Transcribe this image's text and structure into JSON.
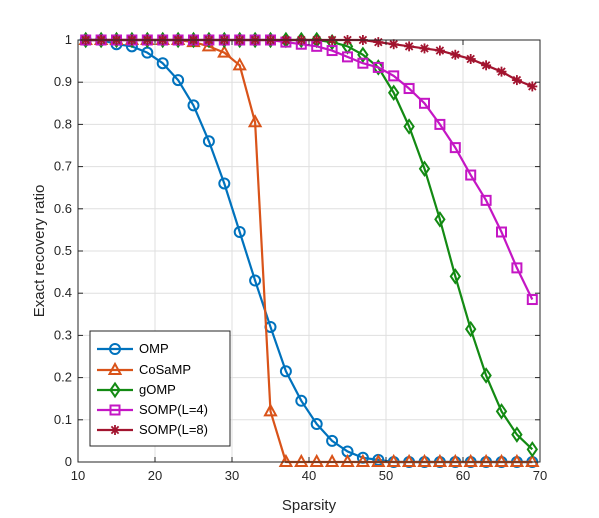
{
  "chart_data": {
    "type": "line",
    "xlabel": "Sparsity",
    "ylabel": "Exact recovery ratio",
    "xlim": [
      10,
      70
    ],
    "ylim": [
      0,
      1
    ],
    "xticks": [
      "10",
      "20",
      "30",
      "40",
      "50",
      "60",
      "70"
    ],
    "yticks": [
      "0",
      "0.1",
      "0.2",
      "0.3",
      "0.4",
      "0.5",
      "0.6",
      "0.7",
      "0.8",
      "0.9",
      "1"
    ],
    "grid": true,
    "legend_position": "bottom-left",
    "x": [
      11,
      13,
      15,
      17,
      19,
      21,
      23,
      25,
      27,
      29,
      31,
      33,
      35,
      37,
      39,
      41,
      43,
      45,
      47,
      49,
      51,
      53,
      55,
      57,
      59,
      61,
      63,
      65,
      67,
      69
    ],
    "series": [
      {
        "name": "OMP",
        "color": "#0072BD",
        "marker": "circle",
        "values": [
          1,
          1,
          0.99,
          0.985,
          0.97,
          0.945,
          0.905,
          0.845,
          0.76,
          0.66,
          0.545,
          0.43,
          0.32,
          0.215,
          0.145,
          0.09,
          0.05,
          0.025,
          0.01,
          0.005,
          0,
          0,
          0,
          0,
          0,
          0,
          0,
          0,
          0,
          0
        ]
      },
      {
        "name": "CoSaMP",
        "color": "#D95319",
        "marker": "triangle",
        "values": [
          1,
          1,
          1,
          1,
          1,
          1,
          1,
          0.995,
          0.985,
          0.97,
          0.94,
          0.805,
          0.12,
          0,
          0,
          0,
          0,
          0,
          0,
          0,
          0,
          0,
          0,
          0,
          0,
          0,
          0,
          0,
          0,
          0
        ]
      },
      {
        "name": "gOMP",
        "color": "#138A13",
        "marker": "diamond",
        "values": [
          1,
          1,
          1,
          1,
          1,
          1,
          1,
          1,
          1,
          1,
          1,
          1,
          1,
          1,
          1,
          1,
          0.995,
          0.985,
          0.965,
          0.935,
          0.875,
          0.795,
          0.695,
          0.575,
          0.44,
          0.315,
          0.205,
          0.12,
          0.065,
          0.03
        ]
      },
      {
        "name": "SOMP(L=4)",
        "color": "#C416C4",
        "marker": "square",
        "values": [
          1,
          1,
          1,
          1,
          1,
          1,
          1,
          1,
          1,
          1,
          1,
          1,
          1,
          0.995,
          0.99,
          0.985,
          0.975,
          0.96,
          0.945,
          0.935,
          0.915,
          0.885,
          0.85,
          0.8,
          0.745,
          0.68,
          0.62,
          0.545,
          0.46,
          0.385
        ]
      },
      {
        "name": "SOMP(L=8)",
        "color": "#A2142F",
        "marker": "asterisk",
        "values": [
          1,
          1,
          1,
          1,
          1,
          1,
          1,
          1,
          1,
          1,
          1,
          1,
          1,
          1,
          1,
          1,
          1,
          1,
          1,
          0.995,
          0.99,
          0.985,
          0.98,
          0.975,
          0.965,
          0.955,
          0.94,
          0.925,
          0.905,
          0.89
        ]
      }
    ]
  }
}
